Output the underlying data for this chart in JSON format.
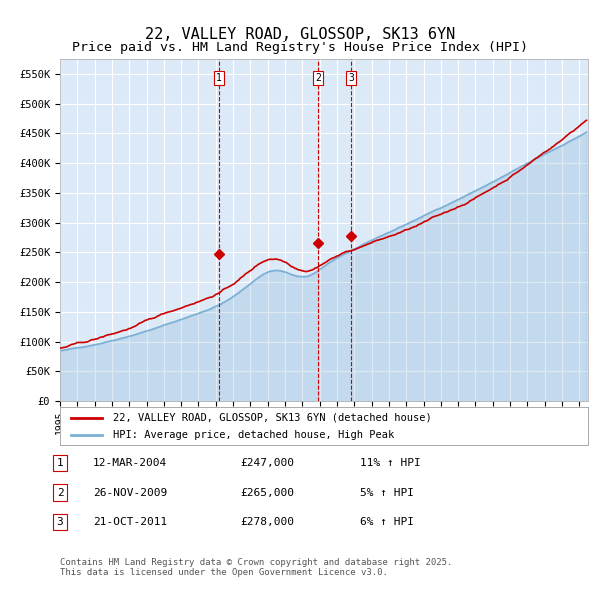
{
  "title": "22, VALLEY ROAD, GLOSSOP, SK13 6YN",
  "subtitle": "Price paid vs. HM Land Registry's House Price Index (HPI)",
  "title_fontsize": 11,
  "subtitle_fontsize": 9.5,
  "ylim": [
    0,
    575000
  ],
  "yticks": [
    0,
    50000,
    100000,
    150000,
    200000,
    250000,
    300000,
    350000,
    400000,
    450000,
    500000,
    550000
  ],
  "ytick_labels": [
    "£0",
    "£50K",
    "£100K",
    "£150K",
    "£200K",
    "£250K",
    "£300K",
    "£350K",
    "£400K",
    "£450K",
    "£500K",
    "£550K"
  ],
  "background_color": "#dce9f7",
  "plot_bg_color": "#dce9f7",
  "grid_color": "#ffffff",
  "red_line_color": "#cc0000",
  "blue_line_color": "#7bafd4",
  "vline_color": "#cc0000",
  "sale_markers": [
    {
      "date_num": 2004.2,
      "price": 247000,
      "label": "1"
    },
    {
      "date_num": 2009.9,
      "price": 265000,
      "label": "2"
    },
    {
      "date_num": 2011.8,
      "price": 278000,
      "label": "3"
    }
  ],
  "legend_entries": [
    "22, VALLEY ROAD, GLOSSOP, SK13 6YN (detached house)",
    "HPI: Average price, detached house, High Peak"
  ],
  "table_rows": [
    {
      "num": "1",
      "date": "12-MAR-2004",
      "price": "£247,000",
      "change": "11% ↑ HPI"
    },
    {
      "num": "2",
      "date": "26-NOV-2009",
      "price": "£265,000",
      "change": "5% ↑ HPI"
    },
    {
      "num": "3",
      "date": "21-OCT-2011",
      "price": "£278,000",
      "change": "6% ↑ HPI"
    }
  ],
  "footer": "Contains HM Land Registry data © Crown copyright and database right 2025.\nThis data is licensed under the Open Government Licence v3.0."
}
